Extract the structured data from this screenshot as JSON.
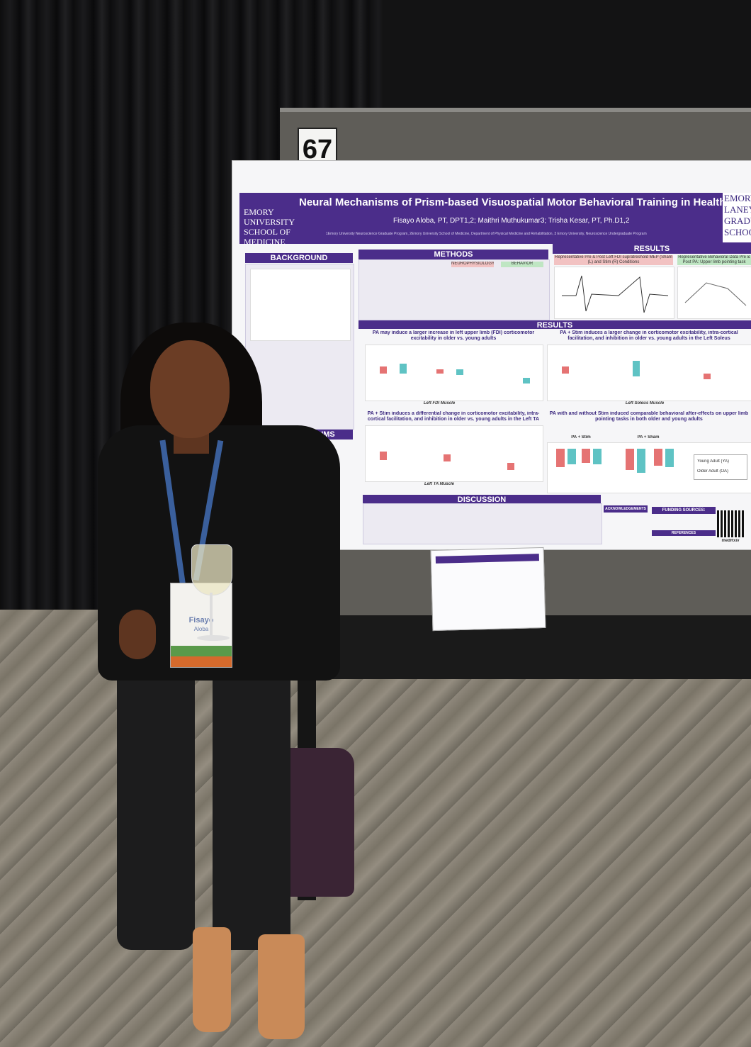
{
  "booth": {
    "number": "67"
  },
  "poster": {
    "logo_left": "EMORY UNIVERSITY SCHOOL OF MEDICINE",
    "logo_right": "EMORY LANEY GRADUATE SCHOOL",
    "title": "Neural Mechanisms of Prism-based Visuospatial Motor Behavioral Training in Healthy Aging",
    "authors": "Fisayo Aloba, PT, DPT1,2; Maithri Muthukumar3; Trisha Kesar, PT, Ph.D1,2",
    "affiliations": "1Emory University Neuroscience Graduate Program, 2Emory University School of Medicine, Department of Physical Medicine and Rehabilitation, 3 Emory University, Neuroscience Undergraduate Program",
    "sections": {
      "background": "BACKGROUND",
      "methods": "METHODS",
      "results": "RESULTS",
      "aims": "AIMS",
      "discussion": "DISCUSSION",
      "acknowledgements": "ACKNOWLEDGEMENTS",
      "funding": "FUNDING SOURCES:",
      "references": "REFERENCES"
    },
    "methods_tabs": [
      "NEUROPHYSIOLOGY",
      "BEHAVIOR"
    ],
    "results_top": [
      "Representative Pre & Post Left FDI supratreshold MEP (Sham (L) and Stim (R) Conditions",
      "Representative Behavioral Data Pre & Post PA: Upper limb pointing task"
    ],
    "subheads": {
      "fdi": "PA may induce a larger increase in left upper limb (FDI) corticomotor excitability in older vs. young adults",
      "soleus": "PA + Stim induces a larger change in corticomotor excitability, intra-cortical facilitation, and inhibition in older vs. young adults in the Left Soleus",
      "ta": "PA + Stim induces a differential change in corticomotor excitability, intra-cortical facilitation, and inhibition in older vs. young adults in the Left TA",
      "behavior": "PA with and without Stim induced comparable behavioral after-effects on upper limb pointing tasks in both older and young adults"
    },
    "muscle_labels": [
      "Left FDI Muscle",
      "Left Soleus Muscle",
      "Left TA Muscle"
    ],
    "behavior_labels": [
      "PA + Stim",
      "PA + Sham"
    ],
    "legend": [
      "Young Adult (YA)",
      "Older Adult (OA)"
    ],
    "qr_label": "medRxiv",
    "colors": {
      "banner": "#4b2d8a",
      "young": "#e57373",
      "older": "#5fc3c4"
    }
  },
  "badge": {
    "first_name": "Fisayo",
    "last_name": "Aloba"
  }
}
